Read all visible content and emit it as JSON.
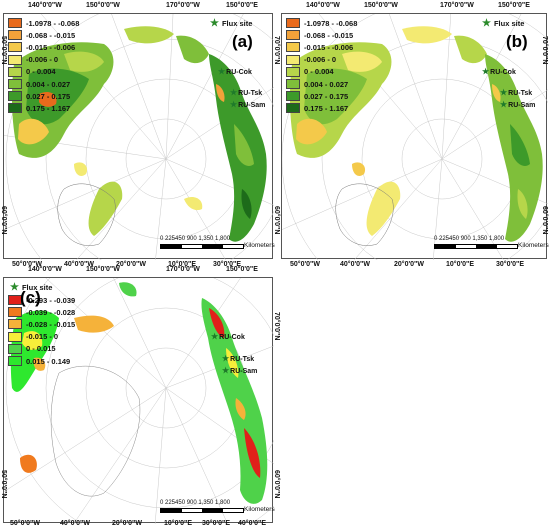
{
  "map": {
    "top_ticks": [
      "140°0'0\"W",
      "150°0'0\"W",
      "170°0'0\"W",
      "150°0'0\"E"
    ],
    "bottom_ticks": [
      "50°0'0\"W",
      "40°0'0\"W",
      "20°0'0\"W",
      "10°0'0\"E",
      "30°0'0\"E",
      "40°0'0\"E"
    ],
    "left_ticks": [
      "50°0'0\"N",
      "60°0'0\"N"
    ],
    "right_ticks": [
      "60°0'0\"N",
      "70°0'0\"N"
    ],
    "flux_legend_label": "Flux site",
    "sites": [
      "RU-Cok",
      "RU-Tsk",
      "RU-Sam"
    ],
    "scale_numbers": "0  225450    900    1,350   1,800",
    "scale_unit": "Kilometers",
    "panels_ab_legend": [
      {
        "label": "-1.0978 - -0.068",
        "color": "#e86a1c"
      },
      {
        "label": "-0.068 - -0.015",
        "color": "#f2a23a"
      },
      {
        "label": "-0.015 - -0.006",
        "color": "#f4c94a"
      },
      {
        "label": "-0.006 - 0",
        "color": "#f3ea72"
      },
      {
        "label": "0 - 0.004",
        "color": "#b6d64a"
      },
      {
        "label": "0.004 - 0.027",
        "color": "#7fbf3a"
      },
      {
        "label": "0.027 - 0.175",
        "color": "#3d9a2a"
      },
      {
        "label": "0.175 - 1.167",
        "color": "#1d6b1a"
      }
    ],
    "panel_c_legend": [
      {
        "label": "-0.293 - -0.039",
        "color": "#e0201a"
      },
      {
        "label": "-0.039 - -0.028",
        "color": "#f07a1e"
      },
      {
        "label": "-0.028 - -0.015",
        "color": "#f5b23a"
      },
      {
        "label": "-0.015 - 0",
        "color": "#f7ee3a"
      },
      {
        "label": "0 - 0.015",
        "color": "#4fd24a"
      },
      {
        "label": "0.015 - 0.149",
        "color": "#2ee82e"
      }
    ],
    "panels": [
      {
        "label": "(a)"
      },
      {
        "label": "(b)"
      },
      {
        "label": "(c)"
      }
    ]
  }
}
